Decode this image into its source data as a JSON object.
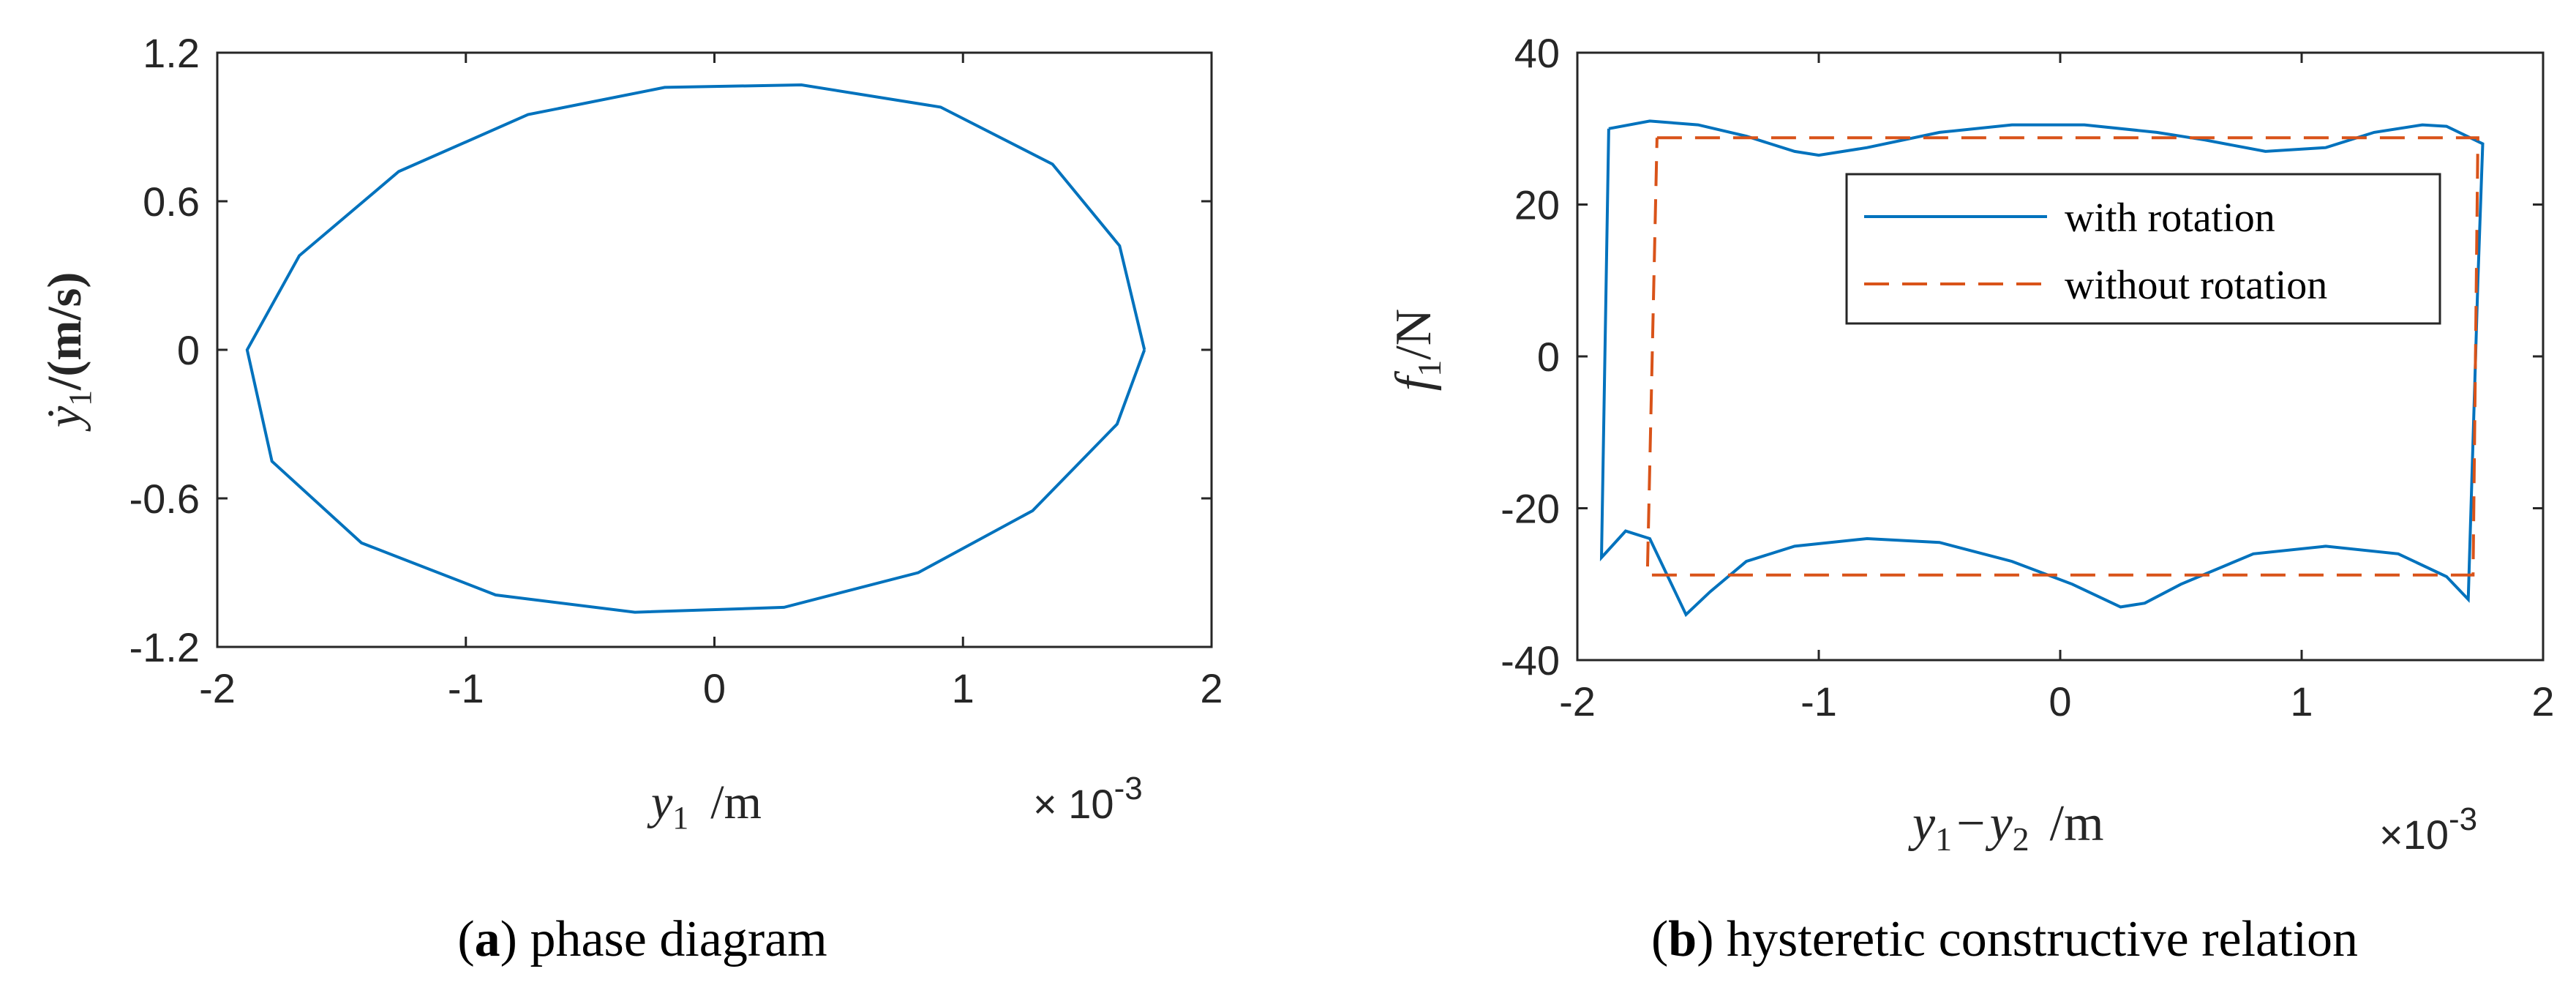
{
  "chart_data": [
    {
      "type": "line",
      "panel": "a",
      "caption_letter": "a",
      "caption_text": "phase diagram",
      "xlabel_var": "y",
      "xlabel_sub": "1",
      "xlabel_unit": "/m",
      "x_multiplier": "× 10",
      "x_multiplier_exp": "-3",
      "ylabel_var": "ẏ",
      "ylabel_sub": "1",
      "ylabel_unit": "/(m/s)",
      "xlim": [
        -2,
        2
      ],
      "ylim": [
        -1.2,
        1.2
      ],
      "xticks": [
        -2,
        -1,
        0,
        1,
        2
      ],
      "yticks": [
        -1.2,
        -0.6,
        0,
        0.6,
        1.2
      ],
      "xtick_labels": [
        "-2",
        "-1",
        "0",
        "1",
        "2"
      ],
      "ytick_labels": [
        "-1.2",
        "-0.6",
        "0",
        "0.6",
        "1.2"
      ],
      "grid": false,
      "color": "#0072BD",
      "series": [
        {
          "x": [
            1.73,
            1.63,
            1.36,
            0.91,
            0.35,
            -0.2,
            -0.75,
            -1.27,
            -1.67,
            -1.88,
            -1.78,
            -1.42,
            -0.88,
            -0.32,
            0.28,
            0.82,
            1.28,
            1.62,
            1.73
          ],
          "y": [
            0,
            0.42,
            0.75,
            0.98,
            1.07,
            1.06,
            0.95,
            0.72,
            0.38,
            0,
            -0.45,
            -0.78,
            -0.99,
            -1.06,
            -1.04,
            -0.9,
            -0.65,
            -0.3,
            0
          ]
        }
      ]
    },
    {
      "type": "line",
      "panel": "b",
      "caption_letter": "b",
      "caption_text": "hysteretic constructive relation",
      "xlabel_var1": "y",
      "xlabel_sub1": "1",
      "xlabel_minus": "−",
      "xlabel_var2": "y",
      "xlabel_sub2": "2",
      "xlabel_unit": "/m",
      "x_multiplier": "×10",
      "x_multiplier_exp": "-3",
      "ylabel_var": "f",
      "ylabel_sub": "1",
      "ylabel_unit": "/N",
      "xlim": [
        -2,
        2
      ],
      "ylim": [
        -40,
        40
      ],
      "xticks": [
        -2,
        -1,
        0,
        1,
        2
      ],
      "yticks": [
        -40,
        -20,
        0,
        20,
        40
      ],
      "xtick_labels": [
        "-2",
        "-1",
        "0",
        "1",
        "2"
      ],
      "ytick_labels": [
        "-40",
        "-20",
        "0",
        "20",
        "40"
      ],
      "grid": false,
      "legend_position": "upper-right",
      "series": [
        {
          "name": "with rotation",
          "color": "#0072BD",
          "dash": "solid",
          "x": [
            -1.87,
            -1.7,
            -1.5,
            -1.3,
            -1.1,
            -1.0,
            -0.8,
            -0.5,
            -0.2,
            0.1,
            0.4,
            0.6,
            0.85,
            1.1,
            1.3,
            1.5,
            1.6,
            1.75,
            1.73,
            1.69,
            1.6,
            1.4,
            1.1,
            0.8,
            0.5,
            0.35,
            0.25,
            0.05,
            -0.2,
            -0.5,
            -0.8,
            -1.1,
            -1.3,
            -1.45,
            -1.55,
            -1.7,
            -1.8,
            -1.9,
            -1.87
          ],
          "y": [
            30,
            31,
            30.5,
            29,
            27,
            26.5,
            27.5,
            29.5,
            30.5,
            30.5,
            29.5,
            28.5,
            27,
            27.5,
            29.5,
            30.5,
            30.3,
            28,
            10,
            -32,
            -29,
            -26,
            -25,
            -26,
            -30,
            -32.5,
            -33,
            -30,
            -27,
            -24.5,
            -24,
            -25,
            -27,
            -31,
            -34,
            -24,
            -23,
            -26.5,
            30
          ]
        },
        {
          "name": "without rotation",
          "color": "#D95319",
          "dash": "dashed",
          "x": [
            -1.67,
            1.73,
            1.71,
            -1.71,
            -1.67
          ],
          "y": [
            28.8,
            28.8,
            -28.8,
            -28.8,
            28.8
          ]
        }
      ]
    }
  ]
}
